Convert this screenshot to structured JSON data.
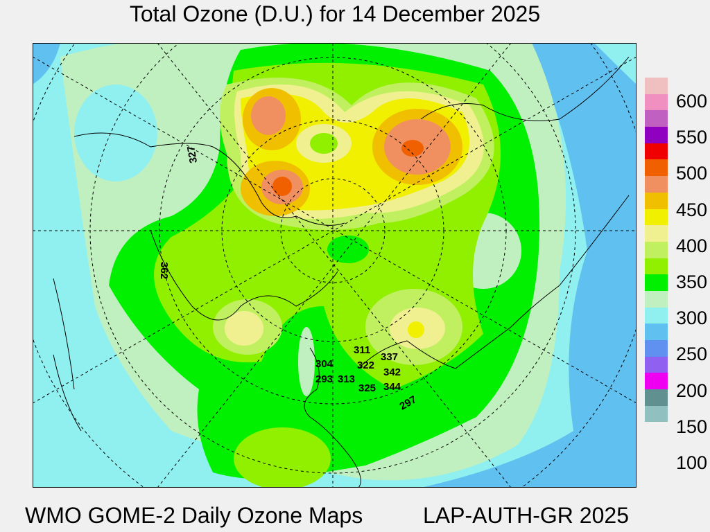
{
  "title": "Total Ozone (D.U.) for 14 December 2025",
  "footer": {
    "left": "WMO GOME-2 Daily Ozone Maps",
    "right": "LAP-AUTH-GR 2025"
  },
  "colorbar": {
    "tick_labels": [
      "600",
      "550",
      "500",
      "450",
      "400",
      "350",
      "300",
      "250",
      "200",
      "150",
      "100"
    ],
    "colors": [
      "#f0c0c0",
      "#f090c0",
      "#c060c0",
      "#9000c0",
      "#f00000",
      "#f06000",
      "#f09060",
      "#f0c000",
      "#f0f000",
      "#f0f090",
      "#c0f060",
      "#90f000",
      "#00f000",
      "#c0f0c0",
      "#90f0f0",
      "#60c0f0",
      "#6090f0",
      "#9060f0",
      "#f000f0",
      "#609090",
      "#90c0c0"
    ]
  },
  "stations": [
    {
      "value": "304"
    },
    {
      "value": "293"
    },
    {
      "value": "313"
    },
    {
      "value": "311"
    },
    {
      "value": "322"
    },
    {
      "value": "337"
    },
    {
      "value": "342"
    },
    {
      "value": "344"
    },
    {
      "value": "325"
    },
    {
      "value": "297"
    },
    {
      "value": "327"
    },
    {
      "value": "362"
    }
  ]
}
